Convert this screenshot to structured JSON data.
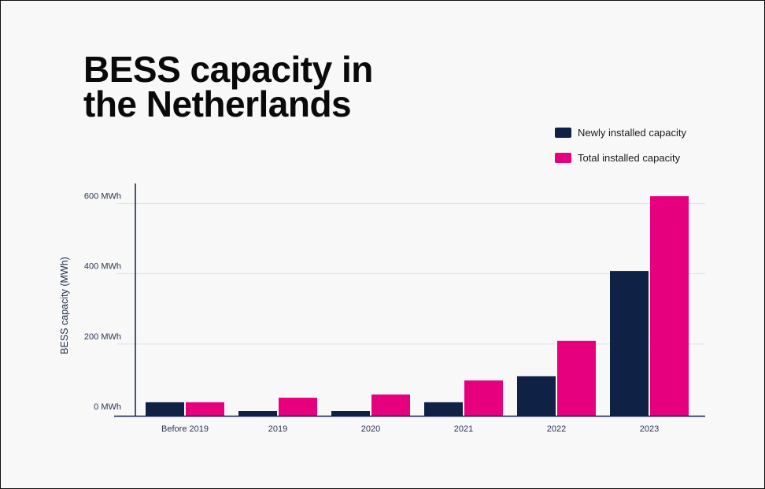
{
  "chart_data": {
    "type": "bar",
    "title_lines": [
      "BESS capacity in",
      "the Netherlands"
    ],
    "ylabel": "BESS capacity (MWh)",
    "xlabel": "",
    "categories": [
      "Before 2019",
      "2019",
      "2020",
      "2021",
      "2022",
      "2023"
    ],
    "series": [
      {
        "name": "Newly installed capacity",
        "color": "#0f2145",
        "values": [
          34,
          9,
          9,
          34,
          108,
          408
        ]
      },
      {
        "name": "Total installed capacity",
        "color": "#e6007e",
        "values": [
          34,
          47,
          56,
          96,
          209,
          621
        ]
      }
    ],
    "yticks": [
      {
        "value": 0,
        "label": "0 MWh"
      },
      {
        "value": 200,
        "label": "200 MWh"
      },
      {
        "value": 400,
        "label": "400 MWh"
      },
      {
        "value": 600,
        "label": "600 MWh"
      }
    ],
    "ylim": [
      0,
      650
    ],
    "grid": true,
    "legend_position": "top-right"
  }
}
